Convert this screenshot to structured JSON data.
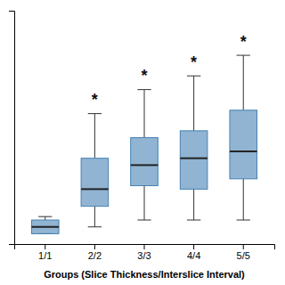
{
  "chart_data": {
    "type": "box",
    "xlabel": "Groups (Slice Thickness/Interslice Interval)",
    "categories": [
      "1/1",
      "2/2",
      "3/3",
      "4/4",
      "5/5"
    ],
    "values": [
      {
        "whislo": 0.0,
        "q1": 0.0,
        "med": 0.02,
        "q3": 0.04,
        "whishi": 0.05
      },
      {
        "whislo": 0.02,
        "q1": 0.08,
        "med": 0.13,
        "q3": 0.22,
        "whishi": 0.35
      },
      {
        "whislo": 0.04,
        "q1": 0.14,
        "med": 0.2,
        "q3": 0.28,
        "whishi": 0.42
      },
      {
        "whislo": 0.04,
        "q1": 0.13,
        "med": 0.22,
        "q3": 0.3,
        "whishi": 0.46
      },
      {
        "whislo": 0.04,
        "q1": 0.16,
        "med": 0.24,
        "q3": 0.36,
        "whishi": 0.52
      }
    ],
    "annotations": [
      {
        "x": "2/2",
        "y": 0.4,
        "text": "*"
      },
      {
        "x": "3/3",
        "y": 0.47,
        "text": "*"
      },
      {
        "x": "4/4",
        "y": 0.51,
        "text": "*"
      },
      {
        "x": "5/5",
        "y": 0.57,
        "text": "*"
      }
    ],
    "ylim": [
      -0.03,
      0.65
    ],
    "yticks": [],
    "tick_labels": "x",
    "grid": false,
    "color": "#4682b4"
  }
}
